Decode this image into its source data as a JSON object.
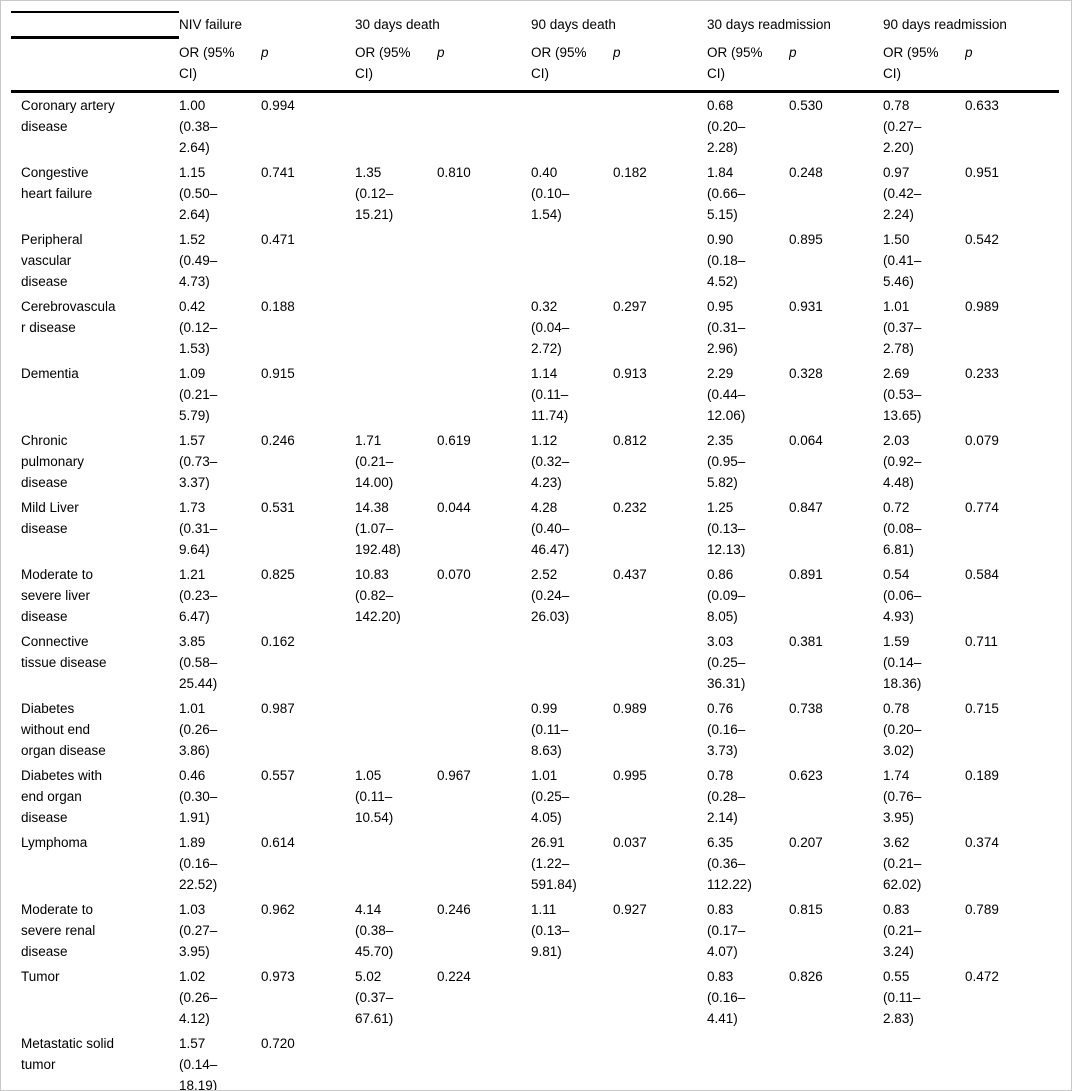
{
  "colors": {
    "rule": "#000000",
    "text": "#000000",
    "frame_border": "#c9c9c9",
    "background": "#ffffff"
  },
  "table": {
    "column_groups": [
      "NIV failure",
      "30 days death",
      "90 days death",
      "30 days readmission",
      "90 days readmission"
    ],
    "sub_columns": {
      "or": "OR (95% CI)",
      "p": "p"
    },
    "rows": [
      {
        "label": "Coronary artery disease",
        "cells": [
          {
            "or": "1.00 (0.38–2.64)",
            "p": "0.994"
          },
          null,
          null,
          {
            "or": "0.68 (0.20–2.28)",
            "p": "0.530"
          },
          {
            "or": "0.78 (0.27–2.20)",
            "p": "0.633"
          }
        ]
      },
      {
        "label": "Congestive heart failure",
        "cells": [
          {
            "or": "1.15 (0.50–2.64)",
            "p": "0.741"
          },
          {
            "or": "1.35 (0.12–15.21)",
            "p": "0.810"
          },
          {
            "or": "0.40 (0.10–1.54)",
            "p": "0.182"
          },
          {
            "or": "1.84 (0.66–5.15)",
            "p": "0.248"
          },
          {
            "or": "0.97 (0.42–2.24)",
            "p": "0.951"
          }
        ]
      },
      {
        "label": "Peripheral vascular disease",
        "cells": [
          {
            "or": "1.52 (0.49–4.73)",
            "p": "0.471"
          },
          null,
          null,
          {
            "or": "0.90 (0.18–4.52)",
            "p": "0.895"
          },
          {
            "or": "1.50 (0.41–5.46)",
            "p": "0.542"
          }
        ]
      },
      {
        "label": "Cerebrovascular disease",
        "cells": [
          {
            "or": "0.42 (0.12–1.53)",
            "p": "0.188"
          },
          null,
          {
            "or": "0.32 (0.04–2.72)",
            "p": "0.297"
          },
          {
            "or": "0.95 (0.31–2.96)",
            "p": "0.931"
          },
          {
            "or": "1.01 (0.37–2.78)",
            "p": "0.989"
          }
        ]
      },
      {
        "label": "Dementia",
        "cells": [
          {
            "or": "1.09 (0.21–5.79)",
            "p": "0.915"
          },
          null,
          {
            "or": "1.14 (0.11–11.74)",
            "p": "0.913"
          },
          {
            "or": "2.29 (0.44–12.06)",
            "p": "0.328"
          },
          {
            "or": "2.69 (0.53–13.65)",
            "p": "0.233"
          }
        ]
      },
      {
        "label": "Chronic pulmonary disease",
        "cells": [
          {
            "or": "1.57 (0.73–3.37)",
            "p": "0.246"
          },
          {
            "or": "1.71 (0.21–14.00)",
            "p": "0.619"
          },
          {
            "or": "1.12 (0.32–4.23)",
            "p": "0.812"
          },
          {
            "or": "2.35 (0.95–5.82)",
            "p": "0.064"
          },
          {
            "or": "2.03 (0.92–4.48)",
            "p": "0.079"
          }
        ]
      },
      {
        "label": "Mild Liver disease",
        "cells": [
          {
            "or": "1.73 (0.31–9.64)",
            "p": "0.531"
          },
          {
            "or": "14.38 (1.07–192.48)",
            "p": "0.044"
          },
          {
            "or": "4.28 (0.40–46.47)",
            "p": "0.232"
          },
          {
            "or": "1.25 (0.13–12.13)",
            "p": "0.847"
          },
          {
            "or": "0.72 (0.08–6.81)",
            "p": "0.774"
          }
        ]
      },
      {
        "label": "Moderate to severe liver disease",
        "cells": [
          {
            "or": "1.21 (0.23–6.47)",
            "p": "0.825"
          },
          {
            "or": "10.83 (0.82–142.20)",
            "p": "0.070"
          },
          {
            "or": "2.52 (0.24–26.03)",
            "p": "0.437"
          },
          {
            "or": "0.86 (0.09–8.05)",
            "p": "0.891"
          },
          {
            "or": "0.54 (0.06–4.93)",
            "p": "0.584"
          }
        ]
      },
      {
        "label": "Connective tissue disease",
        "cells": [
          {
            "or": "3.85 (0.58–25.44)",
            "p": "0.162"
          },
          null,
          null,
          {
            "or": "3.03 (0.25–36.31)",
            "p": "0.381"
          },
          {
            "or": "1.59 (0.14–18.36)",
            "p": "0.711"
          }
        ]
      },
      {
        "label": "Diabetes without end organ disease",
        "cells": [
          {
            "or": "1.01 (0.26–3.86)",
            "p": "0.987"
          },
          null,
          {
            "or": "0.99 (0.11–8.63)",
            "p": "0.989"
          },
          {
            "or": "0.76 (0.16–3.73)",
            "p": "0.738"
          },
          {
            "or": "0.78 (0.20–3.02)",
            "p": "0.715"
          }
        ]
      },
      {
        "label": "Diabetes with end organ disease",
        "cells": [
          {
            "or": "0.46 (0.30–1.91)",
            "p": "0.557"
          },
          {
            "or": "1.05 (0.11–10.54)",
            "p": "0.967"
          },
          {
            "or": "1.01 (0.25–4.05)",
            "p": "0.995"
          },
          {
            "or": "0.78 (0.28–2.14)",
            "p": "0.623"
          },
          {
            "or": "1.74 (0.76–3.95)",
            "p": "0.189"
          }
        ]
      },
      {
        "label": "Lymphoma",
        "cells": [
          {
            "or": "1.89 (0.16–22.52)",
            "p": "0.614"
          },
          null,
          {
            "or": "26.91 (1.22–591.84)",
            "p": "0.037"
          },
          {
            "or": "6.35 (0.36–112.22)",
            "p": "0.207"
          },
          {
            "or": "3.62 (0.21–62.02)",
            "p": "0.374"
          }
        ]
      },
      {
        "label": "Moderate to severe renal disease",
        "cells": [
          {
            "or": "1.03 (0.27–3.95)",
            "p": "0.962"
          },
          {
            "or": "4.14 (0.38–45.70)",
            "p": "0.246"
          },
          {
            "or": "1.11 (0.13–9.81)",
            "p": "0.927"
          },
          {
            "or": "0.83 (0.17–4.07)",
            "p": "0.815"
          },
          {
            "or": "0.83 (0.21–3.24)",
            "p": "0.789"
          }
        ]
      },
      {
        "label": "Tumor",
        "cells": [
          {
            "or": "1.02 (0.26–4.12)",
            "p": "0.973"
          },
          {
            "or": "5.02 (0.37–67.61)",
            "p": "0.224"
          },
          null,
          {
            "or": "0.83 (0.16–4.41)",
            "p": "0.826"
          },
          {
            "or": "0.55 (0.11–2.83)",
            "p": "0.472"
          }
        ]
      },
      {
        "label": "Metastatic solid tumor",
        "cells": [
          {
            "or": "1.57 (0.14–18.19)",
            "p": "0.720"
          },
          null,
          null,
          null,
          null
        ]
      }
    ]
  }
}
